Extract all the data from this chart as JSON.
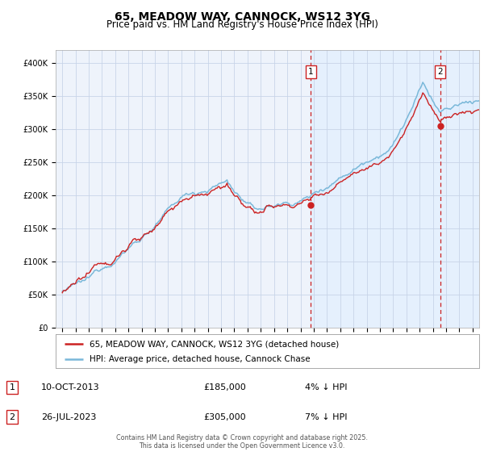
{
  "title": "65, MEADOW WAY, CANNOCK, WS12 3YG",
  "subtitle": "Price paid vs. HM Land Registry's House Price Index (HPI)",
  "footer": "Contains HM Land Registry data © Crown copyright and database right 2025.\nThis data is licensed under the Open Government Licence v3.0.",
  "legend_line1": "65, MEADOW WAY, CANNOCK, WS12 3YG (detached house)",
  "legend_line2": "HPI: Average price, detached house, Cannock Chase",
  "transaction1_date": "10-OCT-2013",
  "transaction1_price": "£185,000",
  "transaction1_hpi": "4% ↓ HPI",
  "transaction2_date": "26-JUL-2023",
  "transaction2_price": "£305,000",
  "transaction2_hpi": "7% ↓ HPI",
  "xmin": 1994.5,
  "xmax": 2026.5,
  "ymin": 0,
  "ymax": 420000,
  "yticks": [
    0,
    50000,
    100000,
    150000,
    200000,
    250000,
    300000,
    350000,
    400000
  ],
  "ytick_labels": [
    "£0",
    "£50K",
    "£100K",
    "£150K",
    "£200K",
    "£250K",
    "£300K",
    "£350K",
    "£400K"
  ],
  "xticks": [
    1995,
    1996,
    1997,
    1998,
    1999,
    2000,
    2001,
    2002,
    2003,
    2004,
    2005,
    2006,
    2007,
    2008,
    2009,
    2010,
    2011,
    2012,
    2013,
    2014,
    2015,
    2016,
    2017,
    2018,
    2019,
    2020,
    2021,
    2022,
    2023,
    2024,
    2025,
    2026
  ],
  "hpi_color": "#7ab8d9",
  "price_color": "#cc2222",
  "vline_color": "#cc2222",
  "shade_color": "#ddeeff",
  "marker1_x": 2013.78,
  "marker2_x": 2023.57,
  "marker1_y": 185000,
  "marker2_y": 305000,
  "background_plot": "#eef3fb",
  "background_fig": "#ffffff",
  "grid_color": "#c8d4e8",
  "title_fontsize": 10,
  "subtitle_fontsize": 8.5,
  "axis_fontsize": 7
}
